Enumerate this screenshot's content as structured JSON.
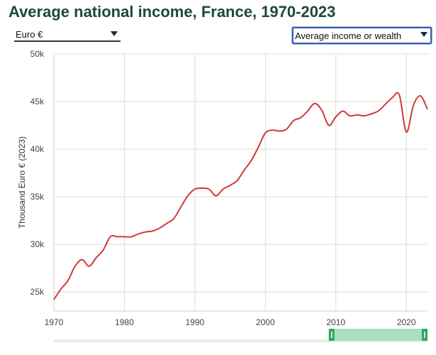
{
  "header": {
    "title": "Average national income, France, 1970-2023"
  },
  "controls": {
    "currency": "Euro €",
    "metric": "Average income or wealth"
  },
  "chart_data": {
    "type": "line",
    "title": "Average national income, France, 1970-2023",
    "xlabel": "",
    "ylabel": "Thousand Euro € (2023)",
    "xlim": [
      1970,
      2023
    ],
    "ylim": [
      23,
      50
    ],
    "x_ticks": [
      1970,
      1980,
      1990,
      2000,
      2010,
      2020
    ],
    "x_tick_labels": [
      "1970",
      "1980",
      "1990",
      "2000",
      "2010",
      "2020"
    ],
    "y_ticks": [
      25,
      30,
      35,
      40,
      45,
      50
    ],
    "y_tick_labels": [
      "25k",
      "30k",
      "35k",
      "40k",
      "45k",
      "50k"
    ],
    "grid": true,
    "series": [
      {
        "color": "#d03a3a",
        "x": [
          1970,
          1971,
          1972,
          1973,
          1974,
          1975,
          1976,
          1977,
          1978,
          1979,
          1980,
          1981,
          1982,
          1983,
          1984,
          1985,
          1986,
          1987,
          1988,
          1989,
          1990,
          1991,
          1992,
          1993,
          1994,
          1995,
          1996,
          1997,
          1998,
          1999,
          2000,
          2001,
          2002,
          2003,
          2004,
          2005,
          2006,
          2007,
          2008,
          2009,
          2010,
          2011,
          2012,
          2013,
          2014,
          2015,
          2016,
          2017,
          2018,
          2019,
          2020,
          2021,
          2022,
          2023
        ],
        "y": [
          24.2,
          25.3,
          26.2,
          27.7,
          28.4,
          27.7,
          28.6,
          29.4,
          30.8,
          30.8,
          30.8,
          30.8,
          31.1,
          31.3,
          31.4,
          31.7,
          32.2,
          32.7,
          33.9,
          35.1,
          35.8,
          35.9,
          35.8,
          35.1,
          35.8,
          36.2,
          36.7,
          37.8,
          38.8,
          40.2,
          41.7,
          42.0,
          41.9,
          42.1,
          43.0,
          43.3,
          44.0,
          44.8,
          44.1,
          42.5,
          43.4,
          44.0,
          43.5,
          43.6,
          43.5,
          43.7,
          44.0,
          44.7,
          45.4,
          45.7,
          41.8,
          44.6,
          45.6,
          44.2
        ]
      }
    ],
    "range_slider": {
      "selected": [
        2009,
        2023
      ]
    }
  }
}
